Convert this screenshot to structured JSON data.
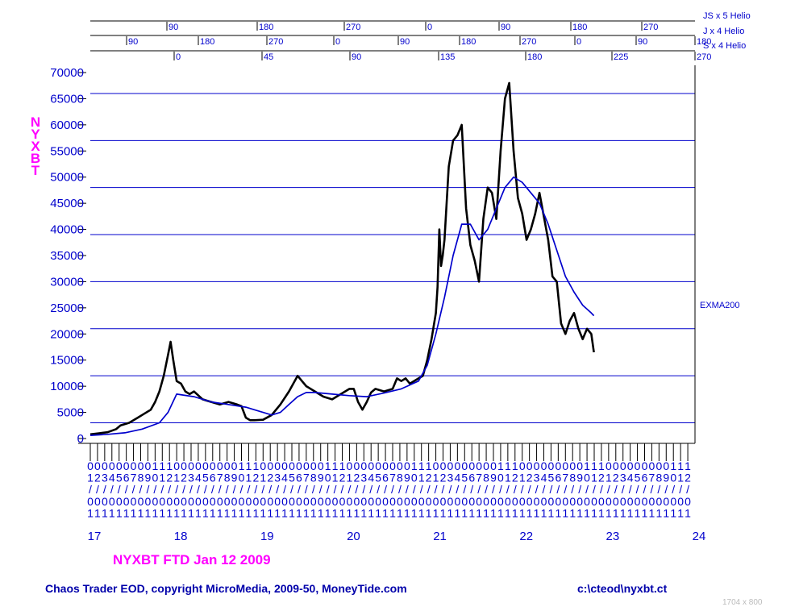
{
  "chart_data": {
    "type": "line",
    "ylabel": "NYXBT",
    "ylim": [
      0,
      70000
    ],
    "y_ticks": [
      0,
      5000,
      10000,
      15000,
      20000,
      25000,
      30000,
      35000,
      40000,
      45000,
      50000,
      55000,
      60000,
      65000,
      70000
    ],
    "y_tick_labels": [
      "0",
      "5000",
      "10000",
      "15000",
      "20000",
      "25000",
      "30000",
      "35000",
      "40000",
      "45000",
      "50000",
      "55000",
      "60000",
      "65000",
      "70000"
    ],
    "x_year_labels": [
      "17",
      "18",
      "19",
      "20",
      "21",
      "22",
      "23",
      "24"
    ],
    "x_month_labels": [
      "1",
      "2",
      "3",
      "4",
      "5",
      "6",
      "7",
      "8",
      "9",
      "10",
      "11",
      "12"
    ],
    "x_date_row2": "/",
    "x_date_row3": "0",
    "x_date_row4": "1",
    "horizontal_lines": [
      3000,
      12000,
      21000,
      30000,
      39000,
      48000,
      57000,
      66000
    ],
    "series": [
      {
        "name": "",
        "color": "#000000",
        "x": [
          2017.0,
          2017.1,
          2017.2,
          2017.3,
          2017.35,
          2017.45,
          2017.55,
          2017.6,
          2017.7,
          2017.75,
          2017.8,
          2017.85,
          2017.9,
          2017.93,
          2017.96,
          2017.98,
          2018.0,
          2018.05,
          2018.1,
          2018.15,
          2018.2,
          2018.3,
          2018.4,
          2018.5,
          2018.6,
          2018.7,
          2018.75,
          2018.8,
          2018.85,
          2018.9,
          2019.0,
          2019.1,
          2019.2,
          2019.3,
          2019.4,
          2019.45,
          2019.5,
          2019.6,
          2019.65,
          2019.7,
          2019.8,
          2019.9,
          2020.0,
          2020.05,
          2020.1,
          2020.15,
          2020.2,
          2020.25,
          2020.3,
          2020.4,
          2020.5,
          2020.55,
          2020.6,
          2020.65,
          2020.7,
          2020.8,
          2020.85,
          2020.9,
          2020.95,
          2021.0,
          2021.02,
          2021.04,
          2021.06,
          2021.08,
          2021.1,
          2021.15,
          2021.2,
          2021.25,
          2021.3,
          2021.35,
          2021.4,
          2021.45,
          2021.5,
          2021.55,
          2021.6,
          2021.65,
          2021.7,
          2021.75,
          2021.8,
          2021.85,
          2021.9,
          2021.95,
          2022.0,
          2022.05,
          2022.1,
          2022.15,
          2022.2,
          2022.3,
          2022.35,
          2022.4,
          2022.45,
          2022.5,
          2022.55,
          2022.6,
          2022.65,
          2022.7,
          2022.75,
          2022.8,
          2022.83
        ],
        "values": [
          800,
          1000,
          1200,
          1800,
          2500,
          3000,
          4000,
          4500,
          5500,
          7000,
          9000,
          12000,
          16000,
          18500,
          15000,
          13000,
          11000,
          10500,
          9000,
          8500,
          9000,
          7500,
          7000,
          6500,
          7000,
          6500,
          6200,
          4000,
          3500,
          3500,
          3600,
          4500,
          6500,
          9000,
          12000,
          11000,
          10000,
          9000,
          8500,
          8000,
          7500,
          8500,
          9500,
          9500,
          7000,
          5500,
          7000,
          8800,
          9500,
          9000,
          9500,
          11500,
          11000,
          11500,
          10500,
          11500,
          12000,
          15000,
          19000,
          24000,
          29000,
          40000,
          33000,
          35000,
          38000,
          52000,
          57000,
          58000,
          60000,
          44000,
          37000,
          34000,
          30000,
          42000,
          48000,
          47000,
          42000,
          55000,
          65000,
          68000,
          55000,
          46000,
          43000,
          38000,
          40000,
          43000,
          47000,
          38000,
          31000,
          30000,
          22000,
          20000,
          22500,
          24000,
          21000,
          19000,
          21000,
          20000,
          16500
        ]
      },
      {
        "name": "EXMA200",
        "color": "#0000cc",
        "x": [
          2017.0,
          2017.2,
          2017.4,
          2017.6,
          2017.8,
          2017.9,
          2018.0,
          2018.2,
          2018.4,
          2018.6,
          2018.8,
          2019.0,
          2019.1,
          2019.2,
          2019.3,
          2019.4,
          2019.5,
          2019.6,
          2019.8,
          2020.0,
          2020.2,
          2020.4,
          2020.6,
          2020.8,
          2020.9,
          2021.0,
          2021.1,
          2021.2,
          2021.3,
          2021.4,
          2021.5,
          2021.6,
          2021.7,
          2021.8,
          2021.9,
          2022.0,
          2022.1,
          2022.2,
          2022.3,
          2022.4,
          2022.5,
          2022.6,
          2022.7,
          2022.8,
          2022.83
        ],
        "values": [
          600,
          800,
          1100,
          1800,
          3000,
          5000,
          8500,
          8000,
          7000,
          6500,
          6000,
          5000,
          4500,
          5000,
          6500,
          8000,
          8800,
          8800,
          8500,
          8200,
          8000,
          8700,
          9500,
          11000,
          14000,
          20000,
          27000,
          35000,
          41000,
          41000,
          38000,
          40000,
          44000,
          48000,
          50000,
          49000,
          47000,
          45000,
          41000,
          36000,
          31000,
          28000,
          25500,
          24000,
          23500
        ]
      }
    ],
    "cycle_scales": [
      {
        "name": "JS x 5 Helio",
        "ticks": [
          "90",
          "180",
          "270",
          "0",
          "90",
          "180",
          "270"
        ]
      },
      {
        "name": "J x 4 Helio",
        "ticks": [
          "90",
          "180",
          "270",
          "0",
          "90",
          "180",
          "270",
          "0",
          "90",
          "180"
        ]
      },
      {
        "name": "S x 4 Helio",
        "ticks": [
          "0",
          "45",
          "90",
          "135",
          "180",
          "225",
          "270"
        ]
      }
    ]
  },
  "ylabel_letters": [
    "N",
    "Y",
    "X",
    "B",
    "T"
  ],
  "title_line": "NYXBT   FTD Jan 12 2009",
  "footer_left": "Chaos Trader EOD, copyright MicroMedia, 2009-50, MoneyTide.com",
  "footer_right": "c:\\cteod\\nyxbt.ct",
  "size_note": "1704 x 800",
  "colors": {
    "price": "#000000",
    "ema": "#0000cc",
    "axis": "#0000cc",
    "label": "#ff00ff",
    "grid": "#0000cc"
  }
}
